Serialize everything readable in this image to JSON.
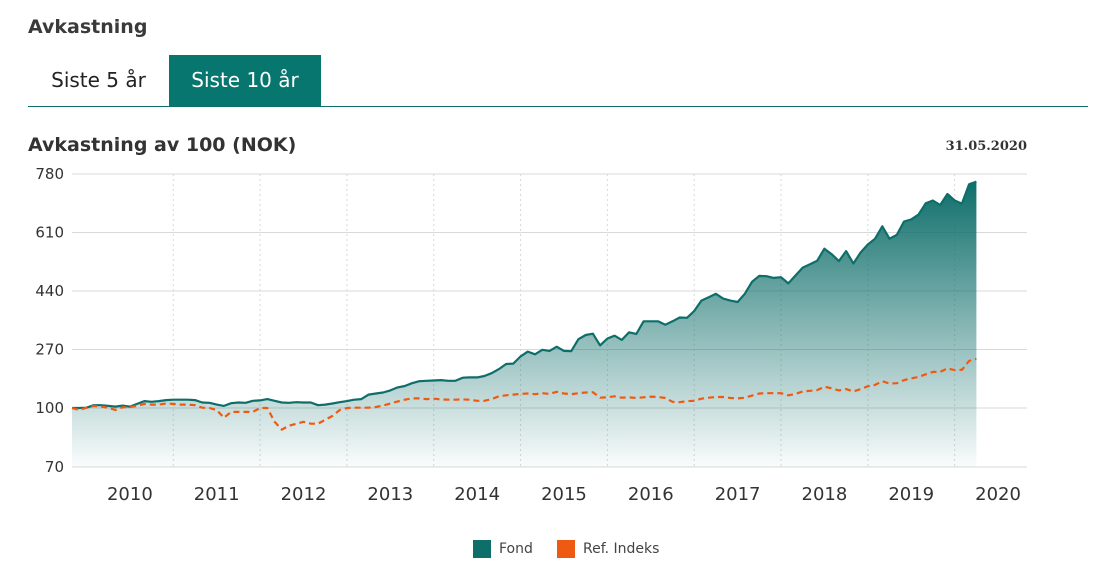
{
  "section_title": "Avkastning",
  "tabs": [
    {
      "label": "Siste 5 år",
      "active": false
    },
    {
      "label": "Siste 10 år",
      "active": true
    }
  ],
  "chart_title": "Avkastning av 100 (NOK)",
  "as_of_date": "31.05.2020",
  "colors": {
    "accent": "#07766f",
    "fond_line": "#0e6e6a",
    "ref_line": "#ef5a12",
    "grid": "#d9d9d9"
  },
  "chart_data": {
    "type": "area",
    "title": "Avkastning av 100 (NOK)",
    "xlabel": "",
    "ylabel": "",
    "y_ticks": [
      70,
      100,
      270,
      440,
      610,
      780
    ],
    "x_ticks": [
      "2010",
      "2011",
      "2012",
      "2013",
      "2014",
      "2015",
      "2016",
      "2017",
      "2018",
      "2019",
      "2020"
    ],
    "x_range": [
      "2009-05-31",
      "2020-05-31"
    ],
    "legend_position": "bottom",
    "grid": true,
    "series": [
      {
        "name": "Fond",
        "color": "#0e6e6a",
        "points": [
          [
            "2009-05",
            100
          ],
          [
            "2009-06",
            100
          ],
          [
            "2009-07",
            101
          ],
          [
            "2009-08",
            108
          ],
          [
            "2009-09",
            108
          ],
          [
            "2009-10",
            106
          ],
          [
            "2009-11",
            104
          ],
          [
            "2009-12",
            107
          ],
          [
            "2010-01",
            104
          ],
          [
            "2010-02",
            112
          ],
          [
            "2010-03",
            120
          ],
          [
            "2010-04",
            118
          ],
          [
            "2010-05",
            120
          ],
          [
            "2010-06",
            123
          ],
          [
            "2010-07",
            124
          ],
          [
            "2010-08",
            124
          ],
          [
            "2010-09",
            124
          ],
          [
            "2010-10",
            123
          ],
          [
            "2010-11",
            116
          ],
          [
            "2010-12",
            115
          ],
          [
            "2011-01",
            110
          ],
          [
            "2011-02",
            106
          ],
          [
            "2011-03",
            114
          ],
          [
            "2011-04",
            116
          ],
          [
            "2011-05",
            115
          ],
          [
            "2011-06",
            121
          ],
          [
            "2011-07",
            122
          ],
          [
            "2011-08",
            126
          ],
          [
            "2011-09",
            121
          ],
          [
            "2011-10",
            116
          ],
          [
            "2011-11",
            115
          ],
          [
            "2011-12",
            117
          ],
          [
            "2012-01",
            116
          ],
          [
            "2012-02",
            116
          ],
          [
            "2012-03",
            108
          ],
          [
            "2012-04",
            110
          ],
          [
            "2012-05",
            113
          ],
          [
            "2012-06",
            117
          ],
          [
            "2012-07",
            120
          ],
          [
            "2012-08",
            124
          ],
          [
            "2012-09",
            126
          ],
          [
            "2012-10",
            139
          ],
          [
            "2012-11",
            142
          ],
          [
            "2012-12",
            145
          ],
          [
            "2013-01",
            151
          ],
          [
            "2013-02",
            160
          ],
          [
            "2013-03",
            164
          ],
          [
            "2013-04",
            172
          ],
          [
            "2013-05",
            178
          ],
          [
            "2013-06",
            179
          ],
          [
            "2013-07",
            180
          ],
          [
            "2013-08",
            181
          ],
          [
            "2013-09",
            179
          ],
          [
            "2013-10",
            179
          ],
          [
            "2013-11",
            188
          ],
          [
            "2013-12",
            189
          ],
          [
            "2014-01",
            189
          ],
          [
            "2014-02",
            193
          ],
          [
            "2014-03",
            201
          ],
          [
            "2014-04",
            213
          ],
          [
            "2014-05",
            228
          ],
          [
            "2014-06",
            229
          ],
          [
            "2014-07",
            250
          ],
          [
            "2014-08",
            264
          ],
          [
            "2014-09",
            256
          ],
          [
            "2014-10",
            269
          ],
          [
            "2014-11",
            266
          ],
          [
            "2014-12",
            278
          ],
          [
            "2015-01",
            266
          ],
          [
            "2015-02",
            265
          ],
          [
            "2015-03",
            300
          ],
          [
            "2015-04",
            312
          ],
          [
            "2015-05",
            316
          ],
          [
            "2015-06",
            282
          ],
          [
            "2015-07",
            302
          ],
          [
            "2015-08",
            310
          ],
          [
            "2015-09",
            298
          ],
          [
            "2015-10",
            320
          ],
          [
            "2015-11",
            315
          ],
          [
            "2015-12",
            352
          ],
          [
            "2016-01",
            352
          ],
          [
            "2016-02",
            352
          ],
          [
            "2016-03",
            342
          ],
          [
            "2016-04",
            352
          ],
          [
            "2016-05",
            363
          ],
          [
            "2016-06",
            362
          ],
          [
            "2016-07",
            382
          ],
          [
            "2016-08",
            412
          ],
          [
            "2016-09",
            422
          ],
          [
            "2016-10",
            432
          ],
          [
            "2016-11",
            418
          ],
          [
            "2016-12",
            412
          ],
          [
            "2017-01",
            408
          ],
          [
            "2017-02",
            432
          ],
          [
            "2017-03",
            467
          ],
          [
            "2017-04",
            484
          ],
          [
            "2017-05",
            483
          ],
          [
            "2017-06",
            478
          ],
          [
            "2017-07",
            480
          ],
          [
            "2017-08",
            462
          ],
          [
            "2017-09",
            485
          ],
          [
            "2017-10",
            508
          ],
          [
            "2017-11",
            518
          ],
          [
            "2017-12",
            528
          ],
          [
            "2018-01",
            563
          ],
          [
            "2018-02",
            547
          ],
          [
            "2018-03",
            527
          ],
          [
            "2018-04",
            556
          ],
          [
            "2018-05",
            520
          ],
          [
            "2018-06",
            552
          ],
          [
            "2018-07",
            575
          ],
          [
            "2018-08",
            592
          ],
          [
            "2018-09",
            628
          ],
          [
            "2018-10",
            592
          ],
          [
            "2018-11",
            603
          ],
          [
            "2018-12",
            642
          ],
          [
            "2019-01",
            648
          ],
          [
            "2019-02",
            662
          ],
          [
            "2019-03",
            695
          ],
          [
            "2019-04",
            703
          ],
          [
            "2019-05",
            690
          ],
          [
            "2019-06",
            722
          ],
          [
            "2019-07",
            703
          ],
          [
            "2019-08",
            694
          ],
          [
            "2019-09",
            750
          ],
          [
            "2019-10",
            758
          ]
        ]
      },
      {
        "name": "Ref. Indeks",
        "color": "#ef5a12",
        "points": [
          [
            "2009-05",
            100
          ],
          [
            "2009-06",
            99
          ],
          [
            "2009-07",
            101
          ],
          [
            "2009-08",
            106
          ],
          [
            "2009-09",
            104
          ],
          [
            "2009-10",
            101
          ],
          [
            "2009-11",
            99
          ],
          [
            "2009-12",
            102
          ],
          [
            "2010-01",
            103
          ],
          [
            "2010-02",
            106
          ],
          [
            "2010-03",
            112
          ],
          [
            "2010-04",
            110
          ],
          [
            "2010-05",
            110
          ],
          [
            "2010-06",
            113
          ],
          [
            "2010-07",
            112
          ],
          [
            "2010-08",
            110
          ],
          [
            "2010-09",
            110
          ],
          [
            "2010-10",
            108
          ],
          [
            "2010-11",
            101
          ],
          [
            "2010-12",
            100
          ],
          [
            "2011-01",
            99
          ],
          [
            "2011-02",
            95
          ],
          [
            "2011-03",
            98
          ],
          [
            "2011-04",
            98
          ],
          [
            "2011-05",
            98
          ],
          [
            "2011-06",
            98
          ],
          [
            "2011-07",
            100
          ],
          [
            "2011-08",
            100
          ],
          [
            "2011-09",
            93
          ],
          [
            "2011-10",
            89
          ],
          [
            "2011-11",
            91
          ],
          [
            "2011-12",
            92
          ],
          [
            "2012-01",
            93
          ],
          [
            "2012-02",
            92
          ],
          [
            "2012-03",
            92
          ],
          [
            "2012-04",
            94
          ],
          [
            "2012-05",
            96
          ],
          [
            "2012-06",
            99
          ],
          [
            "2012-07",
            100
          ],
          [
            "2012-08",
            101
          ],
          [
            "2012-09",
            101
          ],
          [
            "2012-10",
            101
          ],
          [
            "2012-11",
            103
          ],
          [
            "2012-12",
            107
          ],
          [
            "2013-01",
            113
          ],
          [
            "2013-02",
            119
          ],
          [
            "2013-03",
            124
          ],
          [
            "2013-04",
            128
          ],
          [
            "2013-05",
            128
          ],
          [
            "2013-06",
            126
          ],
          [
            "2013-07",
            127
          ],
          [
            "2013-08",
            125
          ],
          [
            "2013-09",
            124
          ],
          [
            "2013-10",
            124
          ],
          [
            "2013-11",
            125
          ],
          [
            "2013-12",
            124
          ],
          [
            "2014-01",
            121
          ],
          [
            "2014-02",
            121
          ],
          [
            "2014-03",
            126
          ],
          [
            "2014-04",
            134
          ],
          [
            "2014-05",
            137
          ],
          [
            "2014-06",
            139
          ],
          [
            "2014-07",
            141
          ],
          [
            "2014-08",
            142
          ],
          [
            "2014-09",
            140
          ],
          [
            "2014-10",
            143
          ],
          [
            "2014-11",
            141
          ],
          [
            "2014-12",
            147
          ],
          [
            "2015-01",
            142
          ],
          [
            "2015-02",
            140
          ],
          [
            "2015-03",
            143
          ],
          [
            "2015-04",
            145
          ],
          [
            "2015-05",
            146
          ],
          [
            "2015-06",
            130
          ],
          [
            "2015-07",
            131
          ],
          [
            "2015-08",
            134
          ],
          [
            "2015-09",
            130
          ],
          [
            "2015-10",
            131
          ],
          [
            "2015-11",
            129
          ],
          [
            "2015-12",
            131
          ],
          [
            "2016-01",
            133
          ],
          [
            "2016-02",
            132
          ],
          [
            "2016-03",
            129
          ],
          [
            "2016-04",
            118
          ],
          [
            "2016-05",
            117
          ],
          [
            "2016-06",
            120
          ],
          [
            "2016-07",
            121
          ],
          [
            "2016-08",
            127
          ],
          [
            "2016-09",
            130
          ],
          [
            "2016-10",
            132
          ],
          [
            "2016-11",
            132
          ],
          [
            "2016-12",
            129
          ],
          [
            "2017-01",
            128
          ],
          [
            "2017-02",
            130
          ],
          [
            "2017-03",
            136
          ],
          [
            "2017-04",
            142
          ],
          [
            "2017-05",
            143
          ],
          [
            "2017-06",
            143
          ],
          [
            "2017-07",
            143
          ],
          [
            "2017-08",
            137
          ],
          [
            "2017-09",
            141
          ],
          [
            "2017-10",
            148
          ],
          [
            "2017-11",
            150
          ],
          [
            "2017-12",
            152
          ],
          [
            "2018-01",
            162
          ],
          [
            "2018-02",
            157
          ],
          [
            "2018-03",
            151
          ],
          [
            "2018-04",
            155
          ],
          [
            "2018-05",
            148
          ],
          [
            "2018-06",
            155
          ],
          [
            "2018-07",
            163
          ],
          [
            "2018-08",
            167
          ],
          [
            "2018-09",
            178
          ],
          [
            "2018-10",
            171
          ],
          [
            "2018-11",
            172
          ],
          [
            "2018-12",
            181
          ],
          [
            "2019-01",
            186
          ],
          [
            "2019-02",
            190
          ],
          [
            "2019-03",
            198
          ],
          [
            "2019-04",
            205
          ],
          [
            "2019-05",
            205
          ],
          [
            "2019-06",
            215
          ],
          [
            "2019-07",
            210
          ],
          [
            "2019-08",
            211
          ],
          [
            "2019-09",
            237
          ],
          [
            "2019-10",
            243
          ]
        ]
      }
    ]
  },
  "legend": {
    "fond_label": "Fond",
    "ref_label": "Ref. Indeks"
  }
}
